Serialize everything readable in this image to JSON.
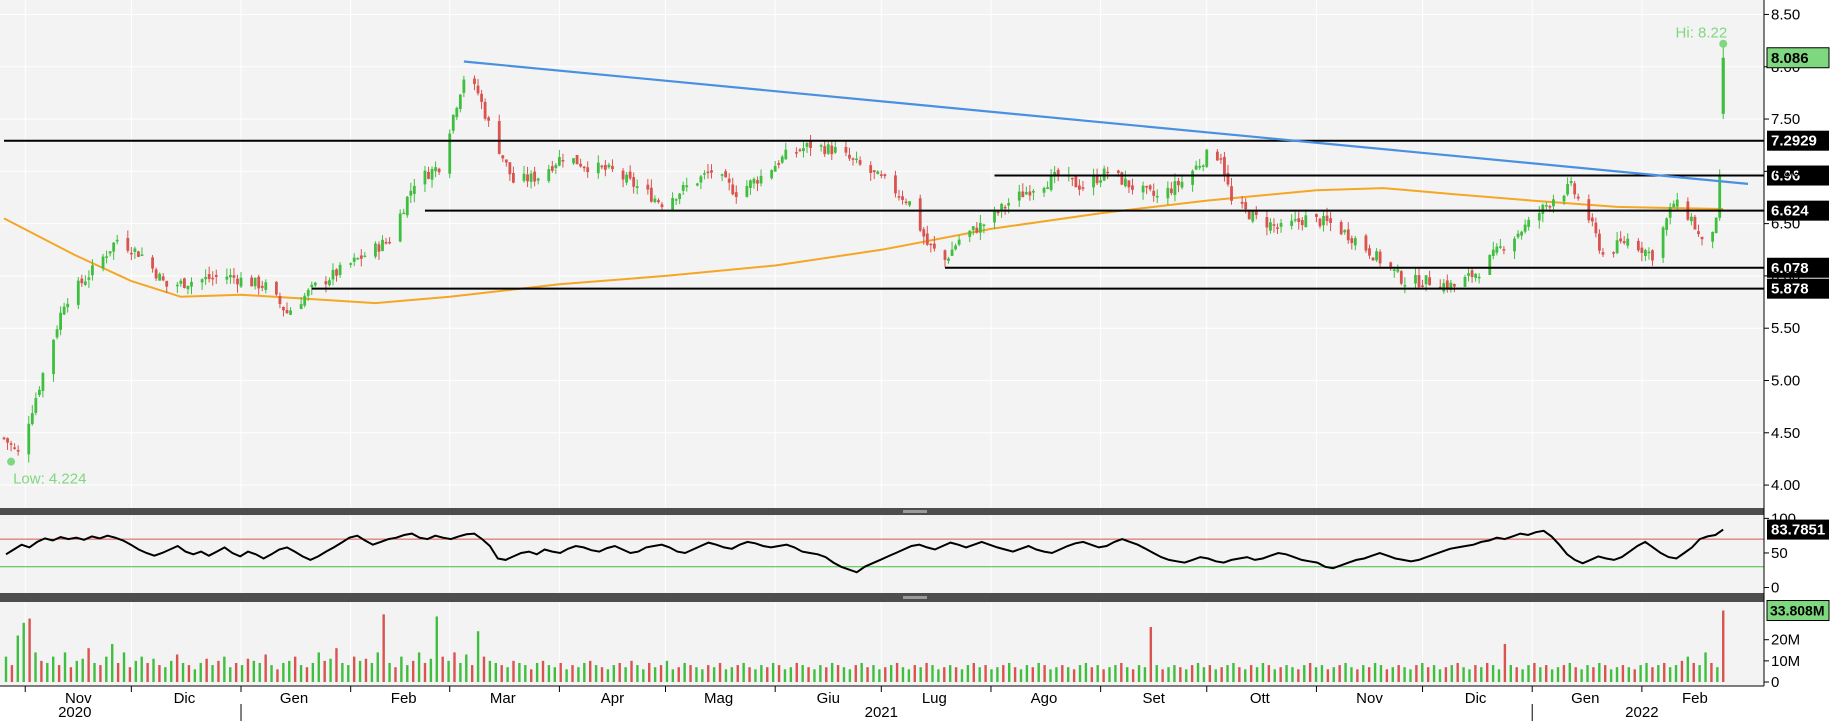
{
  "chart_data": [
    {
      "type": "candlestick",
      "ylim": [
        3.8,
        8.6
      ],
      "yticks": [
        4.0,
        4.5,
        5.0,
        5.5,
        6.0,
        6.5,
        7.0,
        7.5,
        8.0,
        8.5
      ],
      "ytick_labels": [
        "4.00",
        "4.50",
        "5.00",
        "5.50",
        "6.00",
        "6.50",
        "7.00",
        "7.50",
        "8.00",
        "8.50"
      ],
      "x_start": "2020-10-26",
      "x_end": "2022-03-03",
      "low_label": "Low: 4.224",
      "low_value": 4.224,
      "low_date": "2020-10-28",
      "hi_label": "Hi: 8.22",
      "hi_value": 8.22,
      "hi_date": "2022-02-24",
      "last_price_label": "8.086",
      "last_price": 8.086,
      "price_path": [
        [
          "2020-10-26",
          4.45
        ],
        [
          "2020-10-30",
          4.3
        ],
        [
          "2020-11-05",
          4.95
        ],
        [
          "2020-11-12",
          5.75
        ],
        [
          "2020-11-20",
          6.05
        ],
        [
          "2020-11-27",
          6.35
        ],
        [
          "2020-12-04",
          6.2
        ],
        [
          "2020-12-11",
          5.9
        ],
        [
          "2020-12-18",
          5.95
        ],
        [
          "2020-12-28",
          6.0
        ],
        [
          "2021-01-08",
          5.9
        ],
        [
          "2021-01-14",
          5.65
        ],
        [
          "2021-01-22",
          5.9
        ],
        [
          "2021-01-29",
          6.05
        ],
        [
          "2021-02-05",
          6.2
        ],
        [
          "2021-02-12",
          6.35
        ],
        [
          "2021-02-19",
          6.9
        ],
        [
          "2021-02-26",
          7.05
        ],
        [
          "2021-03-05",
          7.9
        ],
        [
          "2021-03-09",
          7.75
        ],
        [
          "2021-03-12",
          7.45
        ],
        [
          "2021-03-19",
          6.9
        ],
        [
          "2021-03-26",
          6.95
        ],
        [
          "2021-04-02",
          7.15
        ],
        [
          "2021-04-09",
          7.05
        ],
        [
          "2021-04-16",
          7.0
        ],
        [
          "2021-04-23",
          6.85
        ],
        [
          "2021-04-30",
          6.7
        ],
        [
          "2021-05-07",
          6.85
        ],
        [
          "2021-05-14",
          7.0
        ],
        [
          "2021-05-21",
          6.8
        ],
        [
          "2021-05-28",
          6.95
        ],
        [
          "2021-06-04",
          7.15
        ],
        [
          "2021-06-11",
          7.25
        ],
        [
          "2021-06-18",
          7.2
        ],
        [
          "2021-06-25",
          7.05
        ],
        [
          "2021-07-02",
          6.9
        ],
        [
          "2021-07-09",
          6.7
        ],
        [
          "2021-07-14",
          6.3
        ],
        [
          "2021-07-19",
          6.15
        ],
        [
          "2021-07-23",
          6.35
        ],
        [
          "2021-07-30",
          6.5
        ],
        [
          "2021-08-06",
          6.7
        ],
        [
          "2021-08-13",
          6.85
        ],
        [
          "2021-08-20",
          6.95
        ],
        [
          "2021-08-27",
          6.85
        ],
        [
          "2021-09-03",
          7.0
        ],
        [
          "2021-09-10",
          6.85
        ],
        [
          "2021-09-17",
          6.75
        ],
        [
          "2021-09-24",
          6.9
        ],
        [
          "2021-10-01",
          7.15
        ],
        [
          "2021-10-05",
          7.15
        ],
        [
          "2021-10-08",
          6.7
        ],
        [
          "2021-10-15",
          6.55
        ],
        [
          "2021-10-22",
          6.45
        ],
        [
          "2021-10-29",
          6.55
        ],
        [
          "2021-11-05",
          6.5
        ],
        [
          "2021-11-12",
          6.35
        ],
        [
          "2021-11-19",
          6.15
        ],
        [
          "2021-11-26",
          5.95
        ],
        [
          "2021-12-03",
          5.95
        ],
        [
          "2021-12-10",
          5.9
        ],
        [
          "2021-12-17",
          6.05
        ],
        [
          "2021-12-24",
          6.3
        ],
        [
          "2021-12-31",
          6.5
        ],
        [
          "2022-01-07",
          6.75
        ],
        [
          "2022-01-12",
          6.85
        ],
        [
          "2022-01-17",
          6.55
        ],
        [
          "2022-01-21",
          6.2
        ],
        [
          "2022-01-28",
          6.35
        ],
        [
          "2022-02-04",
          6.2
        ],
        [
          "2022-02-10",
          6.7
        ],
        [
          "2022-02-15",
          6.55
        ],
        [
          "2022-02-18",
          6.3
        ],
        [
          "2022-02-22",
          6.5
        ],
        [
          "2022-02-23",
          6.9
        ],
        [
          "2022-02-24",
          8.086
        ]
      ],
      "moving_average": [
        [
          "2020-10-26",
          6.55
        ],
        [
          "2020-11-15",
          6.2
        ],
        [
          "2020-12-01",
          5.95
        ],
        [
          "2020-12-15",
          5.8
        ],
        [
          "2021-01-01",
          5.82
        ],
        [
          "2021-01-20",
          5.78
        ],
        [
          "2021-02-08",
          5.74
        ],
        [
          "2021-03-01",
          5.8
        ],
        [
          "2021-04-01",
          5.92
        ],
        [
          "2021-05-01",
          6.0
        ],
        [
          "2021-06-01",
          6.1
        ],
        [
          "2021-07-01",
          6.25
        ],
        [
          "2021-08-01",
          6.45
        ],
        [
          "2021-09-01",
          6.6
        ],
        [
          "2021-10-01",
          6.72
        ],
        [
          "2021-11-01",
          6.82
        ],
        [
          "2021-11-20",
          6.84
        ],
        [
          "2021-12-10",
          6.78
        ],
        [
          "2022-01-01",
          6.72
        ],
        [
          "2022-01-25",
          6.66
        ],
        [
          "2022-02-24",
          6.64
        ]
      ],
      "horizontal_levels": [
        {
          "value": 7.2929,
          "label": "7.2929",
          "from": "2020-10-26"
        },
        {
          "value": 6.96,
          "label": "6.96",
          "from": "2021-08-02"
        },
        {
          "value": 6.624,
          "label": "6.624",
          "from": "2021-02-22"
        },
        {
          "value": 6.078,
          "label": "6.078",
          "from": "2021-07-19"
        },
        {
          "value": 5.878,
          "label": "5.878",
          "from": "2021-01-21"
        }
      ],
      "trendline": {
        "from": [
          "2021-03-05",
          8.05
        ],
        "to": [
          "2022-03-03",
          6.88
        ]
      },
      "colors": {
        "up": "#3fbf3f",
        "down": "#d9534f",
        "ma": "#f5a623",
        "trend": "#4a90e2",
        "level": "#000000",
        "label_green": "#7fd87f"
      }
    },
    {
      "type": "line",
      "name": "RSI",
      "ylim": [
        -5,
        102
      ],
      "yticks": [
        0,
        50,
        100
      ],
      "ytick_labels": [
        "0",
        "50",
        "100"
      ],
      "upper_band": 70,
      "lower_band": 30,
      "last_value_label": "83.7851",
      "last_value": 83.7851,
      "values": [
        48,
        55,
        62,
        58,
        66,
        71,
        68,
        73,
        70,
        72,
        69,
        74,
        71,
        75,
        72,
        68,
        62,
        55,
        50,
        46,
        50,
        55,
        60,
        52,
        48,
        52,
        46,
        52,
        58,
        50,
        45,
        52,
        48,
        42,
        48,
        55,
        58,
        52,
        45,
        40,
        45,
        52,
        58,
        65,
        72,
        75,
        68,
        62,
        66,
        70,
        72,
        76,
        78,
        72,
        70,
        75,
        72,
        70,
        74,
        77,
        78,
        70,
        60,
        42,
        40,
        45,
        50,
        52,
        48,
        55,
        52,
        50,
        56,
        60,
        58,
        54,
        52,
        57,
        60,
        55,
        50,
        52,
        58,
        60,
        62,
        58,
        52,
        50,
        55,
        60,
        65,
        62,
        58,
        56,
        62,
        66,
        64,
        60,
        58,
        60,
        62,
        58,
        52,
        50,
        48,
        44,
        36,
        30,
        26,
        22,
        30,
        35,
        40,
        45,
        50,
        55,
        60,
        62,
        58,
        55,
        60,
        65,
        62,
        58,
        62,
        66,
        62,
        58,
        55,
        52,
        56,
        60,
        55,
        52,
        50,
        55,
        60,
        64,
        66,
        62,
        58,
        60,
        66,
        70,
        66,
        62,
        56,
        50,
        44,
        40,
        38,
        36,
        40,
        44,
        42,
        38,
        36,
        40,
        42,
        44,
        40,
        42,
        46,
        50,
        48,
        44,
        40,
        38,
        36,
        30,
        28,
        32,
        36,
        40,
        42,
        46,
        50,
        46,
        42,
        40,
        38,
        40,
        44,
        48,
        52,
        56,
        58,
        60,
        62,
        66,
        68,
        72,
        70,
        74,
        78,
        76,
        80,
        82,
        74,
        62,
        48,
        40,
        35,
        40,
        45,
        42,
        40,
        44,
        52,
        60,
        66,
        58,
        50,
        44,
        42,
        50,
        58,
        70,
        74,
        76,
        83.7851
      ],
      "colors": {
        "line": "#000000",
        "upper": "#d9534f",
        "lower": "#3fbf3f"
      }
    },
    {
      "type": "bar",
      "name": "Volume",
      "ylim": [
        0,
        35
      ],
      "yticks": [
        0,
        10,
        20
      ],
      "ytick_labels": [
        "0",
        "10M",
        "20M"
      ],
      "last_value_label": "33.808M",
      "last_value": 33.808,
      "values": [
        12,
        8,
        22,
        28,
        30,
        14,
        10,
        9,
        12,
        8,
        14,
        7,
        10,
        11,
        16,
        9,
        8,
        12,
        18,
        9,
        14,
        7,
        10,
        12,
        9,
        11,
        8,
        7,
        10,
        13,
        9,
        8,
        6,
        9,
        11,
        8,
        10,
        12,
        7,
        9,
        8,
        11,
        10,
        9,
        13,
        8,
        6,
        9,
        10,
        12,
        8,
        7,
        9,
        14,
        10,
        11,
        16,
        9,
        8,
        12,
        10,
        11,
        9,
        14,
        32,
        9,
        7,
        12,
        8,
        10,
        14,
        9,
        11,
        31,
        12,
        10,
        14,
        9,
        13,
        8,
        24,
        12,
        10,
        9,
        8,
        7,
        10,
        9,
        8,
        6,
        9,
        10,
        8,
        7,
        9,
        6,
        8,
        7,
        9,
        10,
        8,
        7,
        6,
        8,
        9,
        7,
        10,
        8,
        6,
        9,
        7,
        8,
        10,
        6,
        7,
        9,
        8,
        7,
        6,
        8,
        7,
        9,
        6,
        7,
        8,
        9,
        7,
        6,
        8,
        7,
        9,
        8,
        6,
        7,
        9,
        8,
        7,
        6,
        8,
        7,
        9,
        8,
        7,
        6,
        8,
        9,
        7,
        8,
        6,
        7,
        8,
        9,
        7,
        6,
        8,
        7,
        9,
        8,
        6,
        7,
        8,
        7,
        6,
        8,
        9,
        7,
        8,
        6,
        7,
        8,
        9,
        7,
        6,
        8,
        7,
        9,
        8,
        6,
        7,
        8,
        7,
        6,
        8,
        9,
        7,
        8,
        6,
        7,
        8,
        9,
        7,
        6,
        8,
        7,
        26,
        8,
        6,
        7,
        8,
        7,
        6,
        8,
        9,
        7,
        8,
        6,
        7,
        8,
        9,
        7,
        6,
        8,
        7,
        9,
        8,
        6,
        7,
        8,
        7,
        6,
        8,
        9,
        7,
        8,
        6,
        7,
        8,
        9,
        7,
        6,
        8,
        7,
        9,
        8,
        6,
        7,
        8,
        7,
        6,
        8,
        9,
        7,
        8,
        6,
        7,
        8,
        9,
        7,
        6,
        8,
        7,
        9,
        8,
        6,
        18,
        8,
        7,
        6,
        8,
        9,
        7,
        8,
        6,
        7,
        8,
        9,
        7,
        6,
        8,
        7,
        9,
        8,
        6,
        7,
        8,
        7,
        6,
        8,
        9,
        7,
        8,
        9,
        7,
        8,
        10,
        12,
        9,
        8,
        14,
        9,
        7,
        33.808
      ],
      "colors": {
        "up": "#3fbf3f",
        "down": "#d9534f"
      }
    }
  ],
  "x_axis": {
    "month_ticks": [
      {
        "date": "2020-11-01",
        "label": "Nov"
      },
      {
        "date": "2020-12-01",
        "label": "Dic"
      },
      {
        "date": "2021-01-01",
        "label": "Gen"
      },
      {
        "date": "2021-02-01",
        "label": "Feb"
      },
      {
        "date": "2021-03-01",
        "label": "Mar"
      },
      {
        "date": "2021-04-01",
        "label": "Apr"
      },
      {
        "date": "2021-05-01",
        "label": "Mag"
      },
      {
        "date": "2021-06-01",
        "label": "Giu"
      },
      {
        "date": "2021-07-01",
        "label": "Lug"
      },
      {
        "date": "2021-08-01",
        "label": "Ago"
      },
      {
        "date": "2021-09-01",
        "label": "Set"
      },
      {
        "date": "2021-10-01",
        "label": "Ott"
      },
      {
        "date": "2021-11-01",
        "label": "Nov"
      },
      {
        "date": "2021-12-01",
        "label": "Dic"
      },
      {
        "date": "2022-01-01",
        "label": "Gen"
      },
      {
        "date": "2022-02-01",
        "label": "Feb"
      }
    ],
    "year_labels": [
      {
        "date": "2020-11-15",
        "label": "2020"
      },
      {
        "date": "2021-07-01",
        "label": "2021"
      },
      {
        "date": "2022-02-01",
        "label": "2022"
      }
    ],
    "year_separators": [
      "2021-01-01",
      "2022-01-01"
    ]
  }
}
